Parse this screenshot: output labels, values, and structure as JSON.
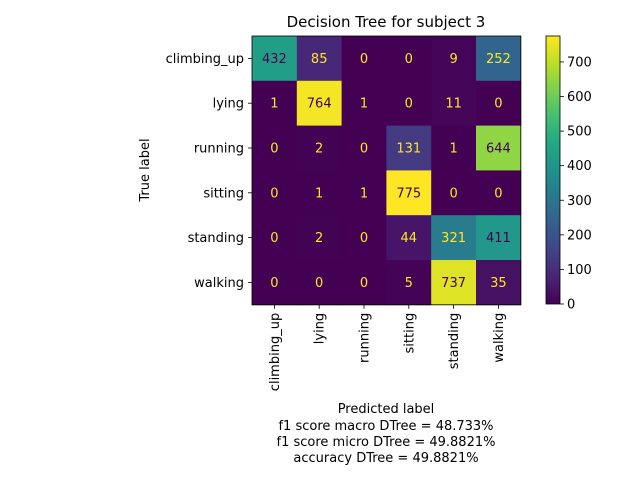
{
  "chart_data": {
    "type": "heatmap",
    "title": "Decision Tree for subject 3",
    "xlabel": "Predicted label",
    "ylabel": "True label",
    "row_labels": [
      "climbing_up",
      "lying",
      "running",
      "sitting",
      "standing",
      "walking"
    ],
    "col_labels": [
      "climbing_up",
      "lying",
      "running",
      "sitting",
      "standing",
      "walking"
    ],
    "values": [
      [
        432,
        85,
        0,
        0,
        9,
        252
      ],
      [
        1,
        764,
        1,
        0,
        11,
        0
      ],
      [
        0,
        2,
        0,
        131,
        1,
        644
      ],
      [
        0,
        1,
        1,
        775,
        0,
        0
      ],
      [
        0,
        2,
        0,
        44,
        321,
        411
      ],
      [
        0,
        0,
        0,
        5,
        737,
        35
      ]
    ],
    "colormap": "viridis",
    "vmin": 0,
    "vmax": 775,
    "colorbar_ticks": [
      0,
      100,
      200,
      300,
      400,
      500,
      600,
      700
    ],
    "notes": [
      "f1 score macro DTree = 48.733%",
      "f1 score micro DTree = 49.8821%",
      "accuracy DTree = 49.8821%"
    ]
  }
}
